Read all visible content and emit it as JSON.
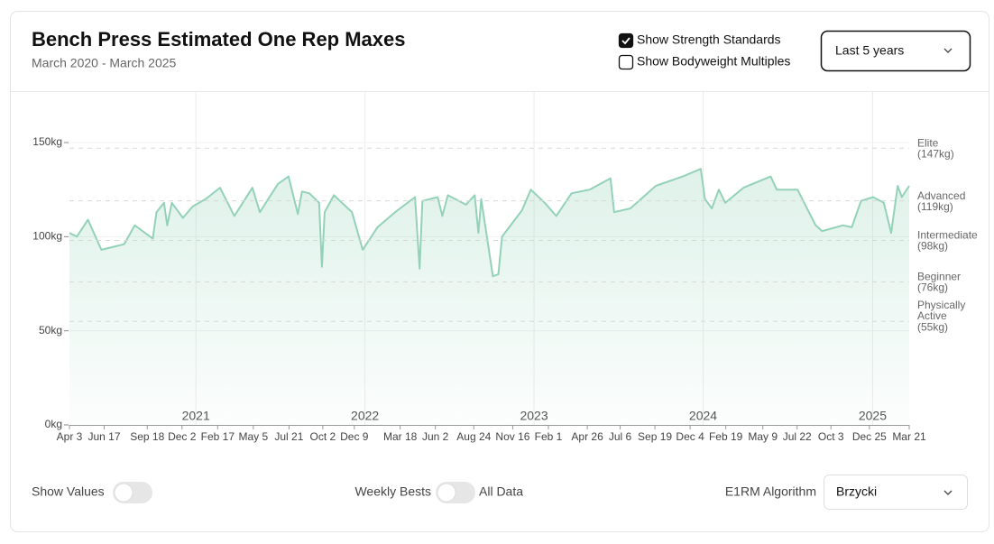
{
  "header": {
    "title": "Bench Press Estimated One Rep Maxes",
    "subtitle": "March 2020 - March 2025",
    "checkboxes": [
      {
        "label": "Show Strength Standards",
        "checked": true
      },
      {
        "label": "Show Bodyweight Multiples",
        "checked": false
      }
    ],
    "range_select": "Last 5 years"
  },
  "chart_data": {
    "type": "line",
    "color": "#93d2b8",
    "x": [
      "2020-04-03",
      "2020-04-19",
      "2020-05-13",
      "2020-06-11",
      "2020-07-30",
      "2020-08-22",
      "2020-09-30",
      "2020-10-08",
      "2020-10-24",
      "2020-10-31",
      "2020-11-10",
      "2020-12-04",
      "2020-12-25",
      "2021-01-22",
      "2021-02-22",
      "2021-03-25",
      "2021-05-03",
      "2021-05-19",
      "2021-06-27",
      "2021-07-20",
      "2021-08-09",
      "2021-08-18",
      "2021-09-03",
      "2021-09-24",
      "2021-09-30",
      "2021-10-06",
      "2021-10-26",
      "2021-12-04",
      "2021-12-27",
      "2022-01-28",
      "2022-03-07",
      "2022-04-19",
      "2022-04-29",
      "2022-05-05",
      "2022-06-07",
      "2022-06-17",
      "2022-06-29",
      "2022-08-07",
      "2022-08-26",
      "2022-09-03",
      "2022-09-09",
      "2022-10-04",
      "2022-10-16",
      "2022-10-24",
      "2022-12-06",
      "2022-12-25",
      "2023-01-24",
      "2023-02-18",
      "2023-03-23",
      "2023-05-01",
      "2023-06-15",
      "2023-06-23",
      "2023-07-28",
      "2023-09-21",
      "2023-11-18",
      "2023-12-27",
      "2024-01-05",
      "2024-01-20",
      "2024-02-04",
      "2024-02-18",
      "2024-03-28",
      "2024-05-26",
      "2024-06-08",
      "2024-07-23",
      "2024-08-31",
      "2024-09-14",
      "2024-10-29",
      "2024-11-17",
      "2024-12-07",
      "2025-01-02",
      "2025-01-25",
      "2025-02-10",
      "2025-02-24",
      "2025-03-05",
      "2025-03-21"
    ],
    "values": [
      102,
      100,
      109,
      93,
      96,
      106,
      99,
      113,
      118,
      106,
      118,
      110,
      116,
      120,
      126,
      111,
      126,
      113,
      128,
      132,
      112,
      124,
      123,
      118,
      84,
      113,
      122,
      113,
      93,
      105,
      113,
      121,
      83,
      119,
      121,
      111,
      122,
      117,
      122,
      102,
      120,
      79,
      80,
      100,
      114,
      125,
      118,
      111,
      123,
      125,
      131,
      113,
      115,
      127,
      132,
      136,
      120,
      115,
      125,
      118,
      126,
      132,
      125,
      125,
      106,
      103,
      106,
      105,
      119,
      121,
      118,
      102,
      127,
      121,
      127
    ],
    "xlim": [
      "2020-04-03",
      "2025-03-21"
    ],
    "xticks": [
      {
        "value": "2020-04-03",
        "label": "Apr 3"
      },
      {
        "value": "2020-06-17",
        "label": "Jun 17"
      },
      {
        "value": "2020-09-18",
        "label": "Sep 18"
      },
      {
        "value": "2020-12-02",
        "label": "Dec 2"
      },
      {
        "value": "2021-02-17",
        "label": "Feb 17"
      },
      {
        "value": "2021-05-05",
        "label": "May 5"
      },
      {
        "value": "2021-07-21",
        "label": "Jul 21"
      },
      {
        "value": "2021-10-02",
        "label": "Oct 2"
      },
      {
        "value": "2021-12-09",
        "label": "Dec 9"
      },
      {
        "value": "2022-03-18",
        "label": "Mar 18"
      },
      {
        "value": "2022-06-02",
        "label": "Jun 2"
      },
      {
        "value": "2022-08-24",
        "label": "Aug 24"
      },
      {
        "value": "2022-11-16",
        "label": "Nov 16"
      },
      {
        "value": "2023-02-01",
        "label": "Feb 1"
      },
      {
        "value": "2023-04-26",
        "label": "Apr 26"
      },
      {
        "value": "2023-07-06",
        "label": "Jul 6"
      },
      {
        "value": "2023-09-19",
        "label": "Sep 19"
      },
      {
        "value": "2023-12-04",
        "label": "Dec 4"
      },
      {
        "value": "2024-02-19",
        "label": "Feb 19"
      },
      {
        "value": "2024-05-09",
        "label": "May 9"
      },
      {
        "value": "2024-07-22",
        "label": "Jul 22"
      },
      {
        "value": "2024-10-03",
        "label": "Oct 3"
      },
      {
        "value": "2024-12-25",
        "label": "Dec 25"
      },
      {
        "value": "2025-03-21",
        "label": "Mar 21"
      }
    ],
    "year_ticks": [
      {
        "value": "2021-01-01",
        "label": "2021"
      },
      {
        "value": "2022-01-01",
        "label": "2022"
      },
      {
        "value": "2023-01-01",
        "label": "2023"
      },
      {
        "value": "2024-01-01",
        "label": "2024"
      },
      {
        "value": "2025-01-01",
        "label": "2025"
      }
    ],
    "ylim": [
      0,
      150
    ],
    "yticks": [
      {
        "value": 0,
        "label": "0kg"
      },
      {
        "value": 50,
        "label": "50kg"
      },
      {
        "value": 100,
        "label": "100kg"
      },
      {
        "value": 150,
        "label": "150kg"
      }
    ],
    "standards": [
      {
        "name": "Elite",
        "value": 147,
        "label": "(147kg)"
      },
      {
        "name": "Advanced",
        "value": 119,
        "label": "(119kg)"
      },
      {
        "name": "Intermediate",
        "value": 98,
        "label": "(98kg)"
      },
      {
        "name": "Beginner",
        "value": 76,
        "label": "(76kg)"
      },
      {
        "name": "Physically Active",
        "value": 55,
        "label": "(55kg)"
      }
    ],
    "grid": true
  },
  "footer": {
    "show_values": {
      "label": "Show Values",
      "on": false
    },
    "mode": {
      "left": "Weekly Bests",
      "right": "All Data",
      "on": false
    },
    "algorithm": {
      "label": "E1RM Algorithm",
      "value": "Brzycki"
    }
  }
}
